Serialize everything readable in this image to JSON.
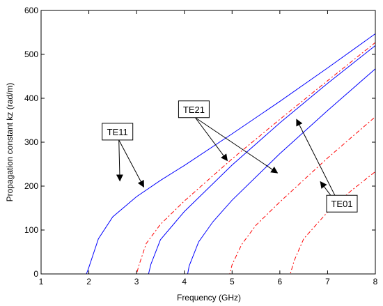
{
  "chart_data": {
    "type": "line",
    "title": "",
    "xlabel": "Frequency (GHz)",
    "ylabel": "Propagation constant kz (rad/m)",
    "xlim": [
      1,
      8
    ],
    "ylim": [
      0,
      600
    ],
    "xticks": [
      1,
      2,
      3,
      4,
      5,
      6,
      7,
      8
    ],
    "yticks": [
      0,
      100,
      200,
      300,
      400,
      500,
      600
    ],
    "grid": false,
    "legend": "none",
    "series": [
      {
        "color": "#0000ff",
        "style": "solid",
        "cutoff": 1.95,
        "x": [
          1.95,
          2.0,
          2.2,
          2.5,
          3.0,
          3.5,
          4.0,
          5.0,
          6.0,
          7.0,
          8.0
        ],
        "y": [
          0,
          15,
          80,
          130,
          176,
          213,
          247,
          319,
          393,
          469,
          547
        ]
      },
      {
        "color": "#ff0000",
        "style": "dashdot",
        "cutoff": 3.0,
        "x": [
          3.0,
          3.05,
          3.2,
          3.5,
          4.0,
          5.0,
          6.0,
          7.0,
          8.0
        ],
        "y": [
          0,
          20,
          69,
          113,
          166,
          262,
          352,
          440,
          527
        ]
      },
      {
        "color": "#0000ff",
        "style": "solid",
        "cutoff": 3.25,
        "x": [
          3.25,
          3.3,
          3.5,
          4.0,
          5.0,
          6.0,
          7.0,
          8.0
        ],
        "y": [
          0,
          22,
          78,
          142,
          248,
          344,
          434,
          520
        ]
      },
      {
        "color": "#0000ff",
        "style": "solid",
        "cutoff": 4.07,
        "x": [
          4.07,
          4.1,
          4.3,
          4.6,
          5.0,
          6.0,
          7.0,
          8.0
        ],
        "y": [
          0,
          18,
          73,
          119,
          168,
          274,
          372,
          467
        ]
      },
      {
        "color": "#ff0000",
        "style": "dashdot",
        "cutoff": 4.95,
        "x": [
          4.95,
          5.0,
          5.2,
          5.5,
          6.0,
          7.0,
          8.0
        ],
        "y": [
          0,
          21,
          67,
          111,
          164,
          264,
          358
        ]
      },
      {
        "color": "#ff0000",
        "style": "dashdot",
        "cutoff": 6.22,
        "x": [
          6.22,
          6.3,
          6.5,
          7.0,
          7.5,
          8.0
        ],
        "y": [
          0,
          30,
          80,
          141,
          190,
          233
        ]
      }
    ],
    "annotations": [
      {
        "text": "TE11",
        "box": [
          2.6,
          324
        ],
        "arrows_to": [
          [
            2.65,
            212
          ],
          [
            3.15,
            198
          ]
        ]
      },
      {
        "text": "TE21",
        "box": [
          4.2,
          375
        ],
        "arrows_to": [
          [
            4.9,
            258
          ],
          [
            5.95,
            230
          ]
        ]
      },
      {
        "text": "TE01",
        "box": [
          7.3,
          160
        ],
        "arrows_to": [
          [
            6.35,
            352
          ],
          [
            6.85,
            210
          ]
        ]
      }
    ]
  }
}
